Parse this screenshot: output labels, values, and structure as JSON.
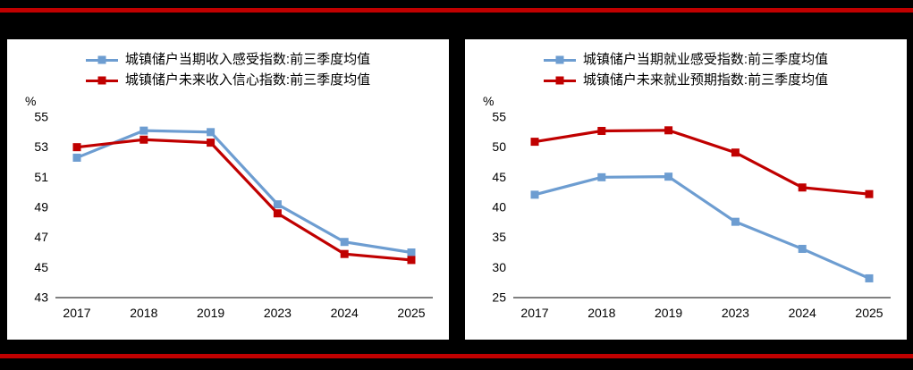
{
  "page": {
    "accent_color": "#C00000",
    "panel_bg": "#FFFFFF"
  },
  "chart_data": [
    {
      "type": "line",
      "title": "",
      "xlabel": "",
      "ylabel": "%",
      "categories": [
        "2017",
        "2018",
        "2019",
        "2023",
        "2024",
        "2025"
      ],
      "series": [
        {
          "name": "城镇储户当期收入感受指数:前三季度均值",
          "color": "#6D9DD1",
          "values": [
            52.3,
            54.1,
            54.0,
            49.2,
            46.7,
            46.0
          ]
        },
        {
          "name": "城镇储户未来收入信心指数:前三季度均值",
          "color": "#C00000",
          "values": [
            53.0,
            53.5,
            53.3,
            48.6,
            45.9,
            45.5
          ]
        }
      ],
      "ylim": [
        43,
        55
      ],
      "ytick_step": 2,
      "grid": false,
      "legend_position": "top"
    },
    {
      "type": "line",
      "title": "",
      "xlabel": "",
      "ylabel": "%",
      "categories": [
        "2017",
        "2018",
        "2019",
        "2023",
        "2024",
        "2025"
      ],
      "series": [
        {
          "name": "城镇储户当期就业感受指数:前三季度均值",
          "color": "#6D9DD1",
          "values": [
            42.1,
            45.0,
            45.1,
            37.6,
            33.1,
            28.2
          ]
        },
        {
          "name": "城镇储户未来就业预期指数:前三季度均值",
          "color": "#C00000",
          "values": [
            50.9,
            52.7,
            52.8,
            49.1,
            43.3,
            42.2
          ]
        }
      ],
      "ylim": [
        25,
        55
      ],
      "ytick_step": 5,
      "grid": false,
      "legend_position": "top"
    }
  ]
}
